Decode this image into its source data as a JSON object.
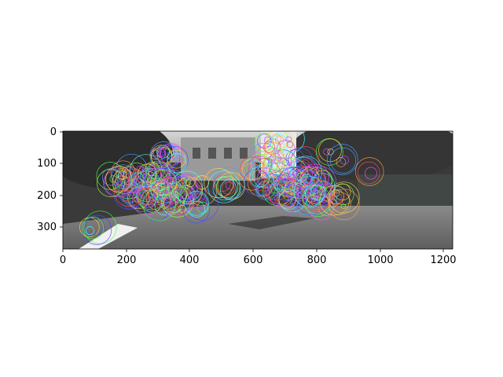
{
  "figure": {
    "description_type": "image-plot",
    "image_content": "grayscale street scene with overlaid colored keypoint circles"
  },
  "axes": {
    "x_ticks": [
      "0",
      "200",
      "400",
      "600",
      "800",
      "1000",
      "1200"
    ],
    "y_ticks": [
      "0",
      "100",
      "200",
      "300"
    ],
    "xlim": [
      0,
      1226
    ],
    "ylim": [
      370,
      0
    ]
  },
  "overlay": {
    "marker": "circle",
    "palette": [
      "#ff4d4d",
      "#4dff4d",
      "#4d4dff",
      "#ffd24d",
      "#ff4dff",
      "#4dffff",
      "#ff9f4d",
      "#b84dff",
      "#9fff4d",
      "#4d9fff"
    ]
  }
}
